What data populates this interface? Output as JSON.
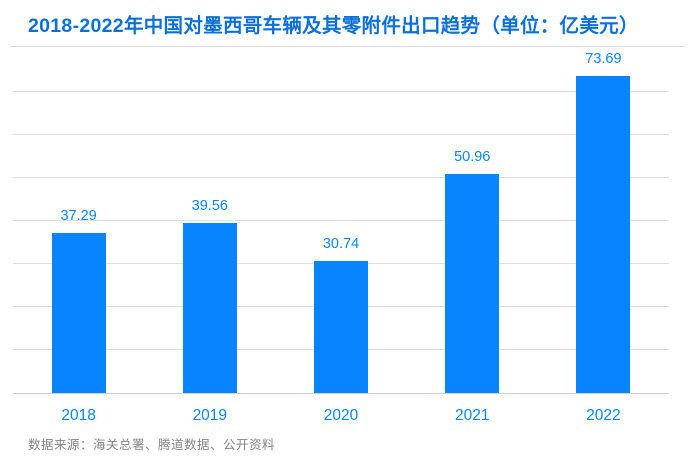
{
  "header": {
    "title": "2018-2022年中国对墨西哥车辆及其零附件出口趋势（单位：亿美元）"
  },
  "footer": {
    "text": "数据来源：海关总署、腾道数据、公开资料"
  },
  "colors": {
    "bar": "#0884FE",
    "value_label": "#0E84F8",
    "title": "#0C70D6",
    "gridline": "#DFDFDF",
    "axis_line": "#D2D2D2",
    "footer_text": "#858585",
    "background": "#FFFFFF"
  },
  "chart_data": {
    "type": "bar",
    "title": "2018-2022年中国对墨西哥车辆及其零附件出口趋势",
    "unit": "亿美元",
    "categories": [
      "2018",
      "2019",
      "2020",
      "2021",
      "2022"
    ],
    "values": [
      37.29,
      39.56,
      30.74,
      50.96,
      73.69
    ],
    "value_labels": [
      "37.29",
      "39.56",
      "30.74",
      "50.96",
      "73.69"
    ],
    "xlabel": "",
    "ylabel": "",
    "ylim": [
      0,
      80
    ],
    "grid_step": 10,
    "grid": true,
    "y_axis_labels_visible": false,
    "legend": false,
    "legend_position": "none"
  }
}
